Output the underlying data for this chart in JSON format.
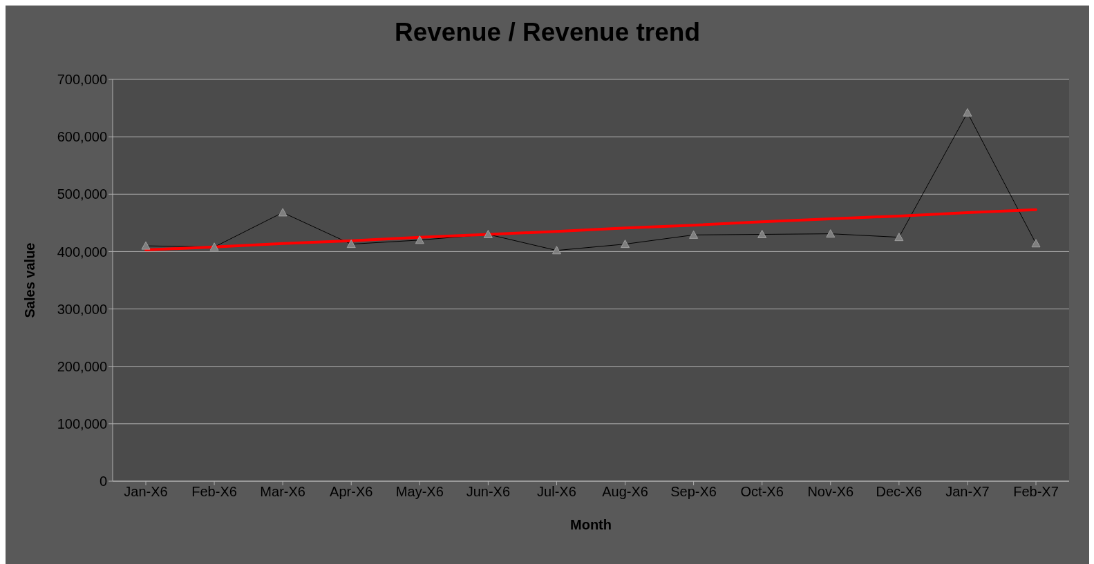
{
  "chart_data": {
    "type": "line",
    "title": "Revenue / Revenue trend",
    "xlabel": "Month",
    "ylabel": "Sales value",
    "categories": [
      "Jan-X6",
      "Feb-X6",
      "Mar-X6",
      "Apr-X6",
      "May-X6",
      "Jun-X6",
      "Jul-X6",
      "Aug-X6",
      "Sep-X6",
      "Oct-X6",
      "Nov-X6",
      "Dec-X6",
      "Jan-X7",
      "Feb-X7"
    ],
    "series": [
      {
        "color": "#000000",
        "marker": "triangle",
        "values": [
          410000,
          408000,
          468000,
          413000,
          420000,
          430000,
          402000,
          413000,
          429000,
          430000,
          431000,
          425000,
          642000,
          414000
        ]
      },
      {
        "color": "#ff0000",
        "marker": "none",
        "values": [
          403000,
          408000,
          414000,
          419000,
          425000,
          430000,
          435000,
          441000,
          446000,
          452000,
          457000,
          462000,
          468000,
          473000
        ]
      }
    ],
    "ylim": [
      0,
      700000
    ],
    "yticks": [
      0,
      {
        "value": 100000,
        "label": "100,000"
      },
      {
        "value": 200000,
        "label": "200,000"
      },
      {
        "value": 300000,
        "label": "300,000"
      },
      {
        "value": 400000,
        "label": "400,000"
      },
      {
        "value": 500000,
        "label": "500,000"
      },
      {
        "value": 600000,
        "label": "600,000"
      },
      {
        "value": 700000,
        "label": "700,000"
      }
    ],
    "grid": "y",
    "legend": false,
    "line_style": "solid"
  }
}
